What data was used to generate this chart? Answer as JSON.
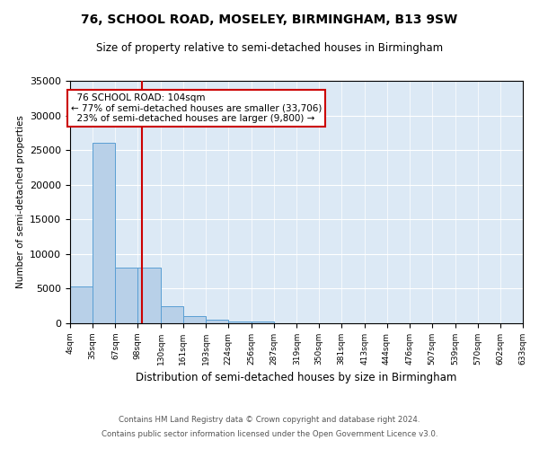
{
  "title": "76, SCHOOL ROAD, MOSELEY, BIRMINGHAM, B13 9SW",
  "subtitle": "Size of property relative to semi-detached houses in Birmingham",
  "xlabel": "Distribution of semi-detached houses by size in Birmingham",
  "ylabel": "Number of semi-detached properties",
  "footnote1": "Contains HM Land Registry data © Crown copyright and database right 2024.",
  "footnote2": "Contains public sector information licensed under the Open Government Licence v3.0.",
  "annotation_title": "76 SCHOOL ROAD: 104sqm",
  "annotation_line1": "← 77% of semi-detached houses are smaller (33,706)",
  "annotation_line2": "23% of semi-detached houses are larger (9,800) →",
  "property_size": 104,
  "bar_edges": [
    4,
    35,
    67,
    98,
    130,
    161,
    193,
    224,
    256,
    287,
    319,
    350,
    381,
    413,
    444,
    476,
    507,
    539,
    570,
    602,
    633
  ],
  "bar_heights": [
    5300,
    26000,
    8000,
    8000,
    2400,
    1100,
    500,
    300,
    300,
    0,
    0,
    0,
    0,
    0,
    0,
    0,
    0,
    0,
    0,
    0
  ],
  "bar_color": "#b8d0e8",
  "bar_edge_color": "#5a9fd4",
  "vline_color": "#cc0000",
  "annotation_box_color": "#ffffff",
  "annotation_box_edge": "#cc0000",
  "background_color": "#dce9f5",
  "ylim": [
    0,
    35000
  ],
  "yticks": [
    0,
    5000,
    10000,
    15000,
    20000,
    25000,
    30000,
    35000
  ]
}
